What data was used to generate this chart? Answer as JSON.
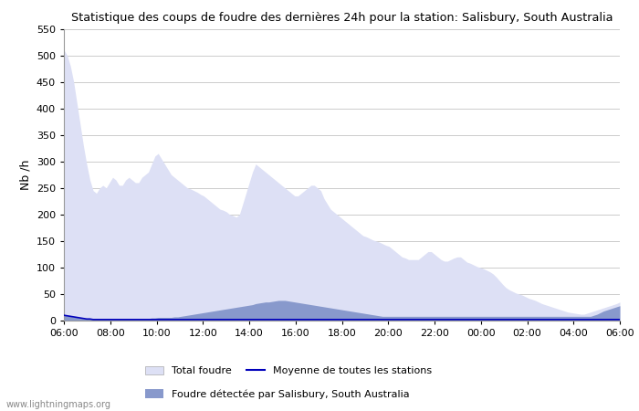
{
  "title": "Statistique des coups de foudre des dernières 24h pour la station: Salisbury, South Australia",
  "ylabel": "Nb /h",
  "watermark": "www.lightningmaps.org",
  "ylim": [
    0,
    550
  ],
  "yticks": [
    0,
    50,
    100,
    150,
    200,
    250,
    300,
    350,
    400,
    450,
    500,
    550
  ],
  "xtick_labels": [
    "06:00",
    "08:00",
    "10:00",
    "12:00",
    "14:00",
    "16:00",
    "18:00",
    "20:00",
    "22:00",
    "00:00",
    "02:00",
    "04:00",
    "06:00"
  ],
  "color_total": "#dde0f5",
  "color_detected": "#8899cc",
  "color_moyenne": "#0000bb",
  "legend_total": "Total foudre",
  "legend_detected": "Foudre détectée par Salisbury, South Australia",
  "legend_moyenne": "Moyenne de toutes les stations",
  "total_foudre": [
    510,
    500,
    480,
    450,
    410,
    370,
    330,
    295,
    265,
    245,
    240,
    250,
    255,
    250,
    260,
    270,
    265,
    255,
    255,
    265,
    270,
    265,
    260,
    260,
    270,
    275,
    280,
    295,
    310,
    315,
    305,
    295,
    285,
    275,
    270,
    265,
    260,
    255,
    250,
    248,
    245,
    242,
    238,
    235,
    230,
    225,
    220,
    215,
    210,
    208,
    205,
    200,
    198,
    195,
    200,
    220,
    240,
    260,
    280,
    295,
    290,
    285,
    280,
    275,
    270,
    265,
    260,
    255,
    250,
    245,
    240,
    235,
    235,
    240,
    245,
    250,
    255,
    255,
    250,
    245,
    230,
    220,
    210,
    205,
    200,
    195,
    190,
    185,
    180,
    175,
    170,
    165,
    160,
    158,
    155,
    152,
    150,
    148,
    145,
    142,
    140,
    135,
    130,
    125,
    120,
    118,
    115,
    115,
    115,
    115,
    120,
    125,
    130,
    130,
    125,
    120,
    115,
    112,
    112,
    115,
    118,
    120,
    120,
    115,
    110,
    108,
    105,
    102,
    100,
    98,
    95,
    92,
    88,
    82,
    75,
    68,
    62,
    58,
    55,
    52,
    50,
    48,
    45,
    42,
    40,
    38,
    35,
    32,
    30,
    28,
    26,
    24,
    22,
    20,
    18,
    16,
    15,
    14,
    13,
    12,
    12,
    14,
    16,
    18,
    20,
    22,
    24,
    26,
    28,
    30,
    32,
    35
  ],
  "detected_foudre": [
    10,
    9,
    8,
    7,
    6,
    5,
    4,
    4,
    3,
    3,
    3,
    3,
    3,
    3,
    3,
    3,
    3,
    3,
    3,
    3,
    3,
    3,
    3,
    3,
    3,
    4,
    4,
    5,
    5,
    6,
    6,
    6,
    6,
    6,
    7,
    7,
    8,
    9,
    10,
    11,
    12,
    13,
    14,
    15,
    16,
    17,
    18,
    19,
    20,
    21,
    22,
    23,
    24,
    25,
    26,
    27,
    28,
    29,
    30,
    32,
    33,
    34,
    35,
    35,
    36,
    37,
    38,
    38,
    38,
    37,
    36,
    35,
    34,
    33,
    32,
    31,
    30,
    29,
    28,
    27,
    26,
    25,
    24,
    23,
    22,
    21,
    20,
    19,
    18,
    17,
    16,
    15,
    14,
    13,
    12,
    11,
    10,
    9,
    8,
    8,
    8,
    8,
    8,
    8,
    8,
    8,
    8,
    8,
    8,
    8,
    8,
    8,
    8,
    8,
    8,
    8,
    8,
    8,
    8,
    8,
    8,
    8,
    8,
    8,
    8,
    8,
    8,
    8,
    8,
    8,
    8,
    8,
    8,
    8,
    8,
    8,
    8,
    8,
    8,
    8,
    8,
    8,
    8,
    8,
    8,
    8,
    8,
    8,
    8,
    8,
    8,
    8,
    8,
    8,
    8,
    8,
    8,
    8,
    8,
    8,
    8,
    8,
    8,
    10,
    12,
    15,
    18,
    20,
    22,
    24,
    26,
    28
  ],
  "moyenne": [
    10,
    9,
    8,
    7,
    6,
    5,
    4,
    3,
    3,
    2,
    2,
    2,
    2,
    2,
    2,
    2,
    2,
    2,
    2,
    2,
    2,
    2,
    2,
    2,
    2,
    2,
    2,
    2,
    2,
    2,
    2,
    2,
    2,
    2,
    2,
    2,
    2,
    2,
    2,
    2,
    2,
    2,
    2,
    2,
    2,
    2,
    2,
    2,
    2,
    2,
    2,
    2,
    2,
    2,
    2,
    2,
    2,
    2,
    2,
    2,
    2,
    2,
    2,
    2,
    2,
    2,
    2,
    2,
    2,
    2,
    2,
    2,
    2,
    2,
    2,
    2,
    2,
    2,
    2,
    2,
    2,
    2,
    2,
    2,
    2,
    2,
    2,
    2,
    2,
    2,
    2,
    2,
    2,
    2,
    2,
    2,
    2,
    2,
    2,
    2,
    2,
    2,
    2,
    2,
    2,
    2,
    2,
    2,
    2,
    2,
    2,
    2,
    2,
    2,
    2,
    2,
    2,
    2,
    2,
    2,
    2,
    2,
    2,
    2,
    2,
    2,
    2,
    2,
    2,
    2,
    2,
    2,
    2,
    2,
    2,
    2,
    2,
    2,
    2,
    2,
    2,
    2,
    2,
    2,
    2,
    2,
    2,
    2,
    2,
    2,
    2,
    2,
    2,
    2,
    2,
    2,
    2,
    2,
    2,
    2,
    2,
    2,
    2,
    2,
    2,
    2,
    2,
    2,
    2,
    2,
    2,
    2
  ]
}
